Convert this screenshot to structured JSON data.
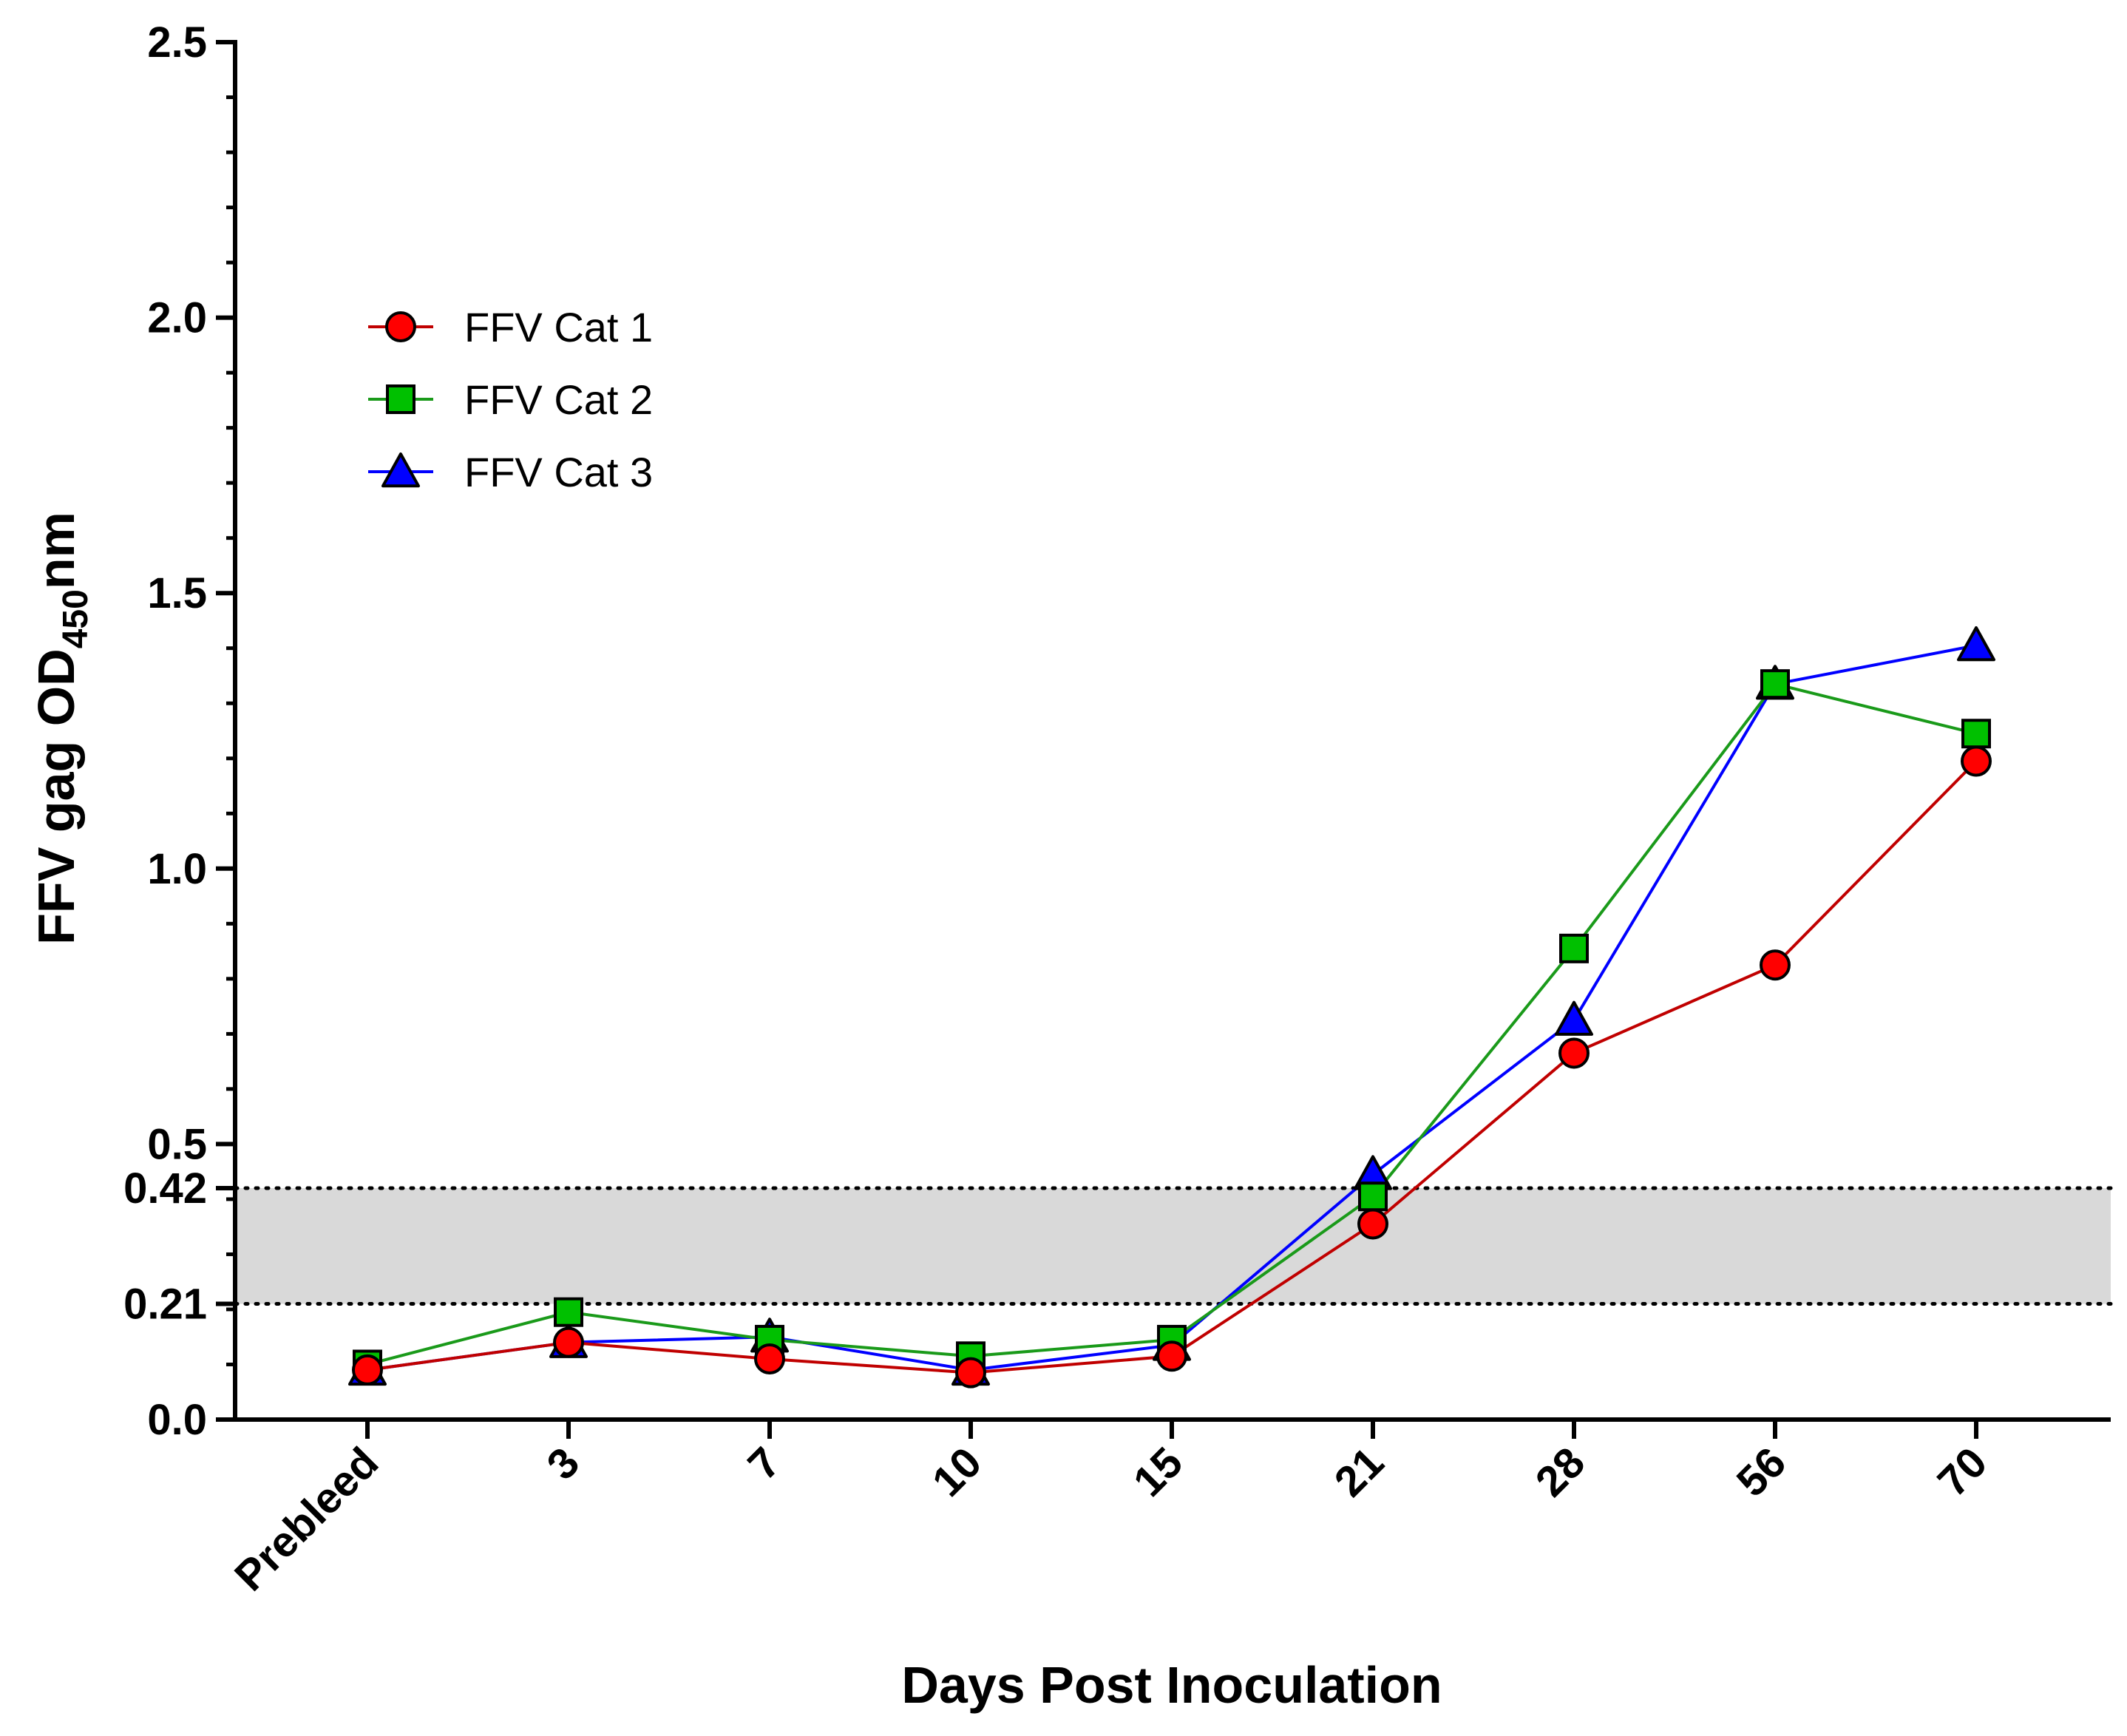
{
  "chart_data": {
    "type": "line",
    "title": "",
    "xlabel": "Days Post Inoculation",
    "ylabel": {
      "main": "FFV gag OD",
      "subscript": "450",
      "suffix": "nm"
    },
    "ylim": [
      0,
      2.5
    ],
    "yticks": [
      {
        "value": 0.0,
        "label": "0.0"
      },
      {
        "value": 0.21,
        "label": "0.21"
      },
      {
        "value": 0.42,
        "label": "0.42"
      },
      {
        "value": 0.5,
        "label": "0.5"
      },
      {
        "value": 1.0,
        "label": "1.0"
      },
      {
        "value": 1.5,
        "label": "1.5"
      },
      {
        "value": 2.0,
        "label": "2.0"
      },
      {
        "value": 2.5,
        "label": "2.5"
      }
    ],
    "categories": [
      "Prebleed",
      "3",
      "7",
      "10",
      "15",
      "21",
      "28",
      "56",
      "70"
    ],
    "threshold_band": {
      "low": 0.21,
      "high": 0.42,
      "fill": "#d9d9d9"
    },
    "legend_position": "top-left",
    "series": [
      {
        "name": "FFV Cat 1",
        "color": "#c00000",
        "marker": "circle",
        "marker_fill": "#ff0000",
        "values": [
          0.09,
          0.14,
          0.11,
          0.085,
          0.115,
          0.355,
          0.665,
          0.825,
          1.195
        ]
      },
      {
        "name": "FFV Cat 2",
        "color": "#1a9a1a",
        "marker": "square",
        "marker_fill": "#00c000",
        "values": [
          0.1,
          0.195,
          0.145,
          0.115,
          0.145,
          0.405,
          0.855,
          1.335,
          1.245
        ]
      },
      {
        "name": "FFV Cat 3",
        "color": "#0000ff",
        "marker": "triangle",
        "marker_fill": "#0000ff",
        "values": [
          0.09,
          0.14,
          0.15,
          0.09,
          0.135,
          0.445,
          0.725,
          1.335,
          1.405
        ]
      }
    ]
  }
}
